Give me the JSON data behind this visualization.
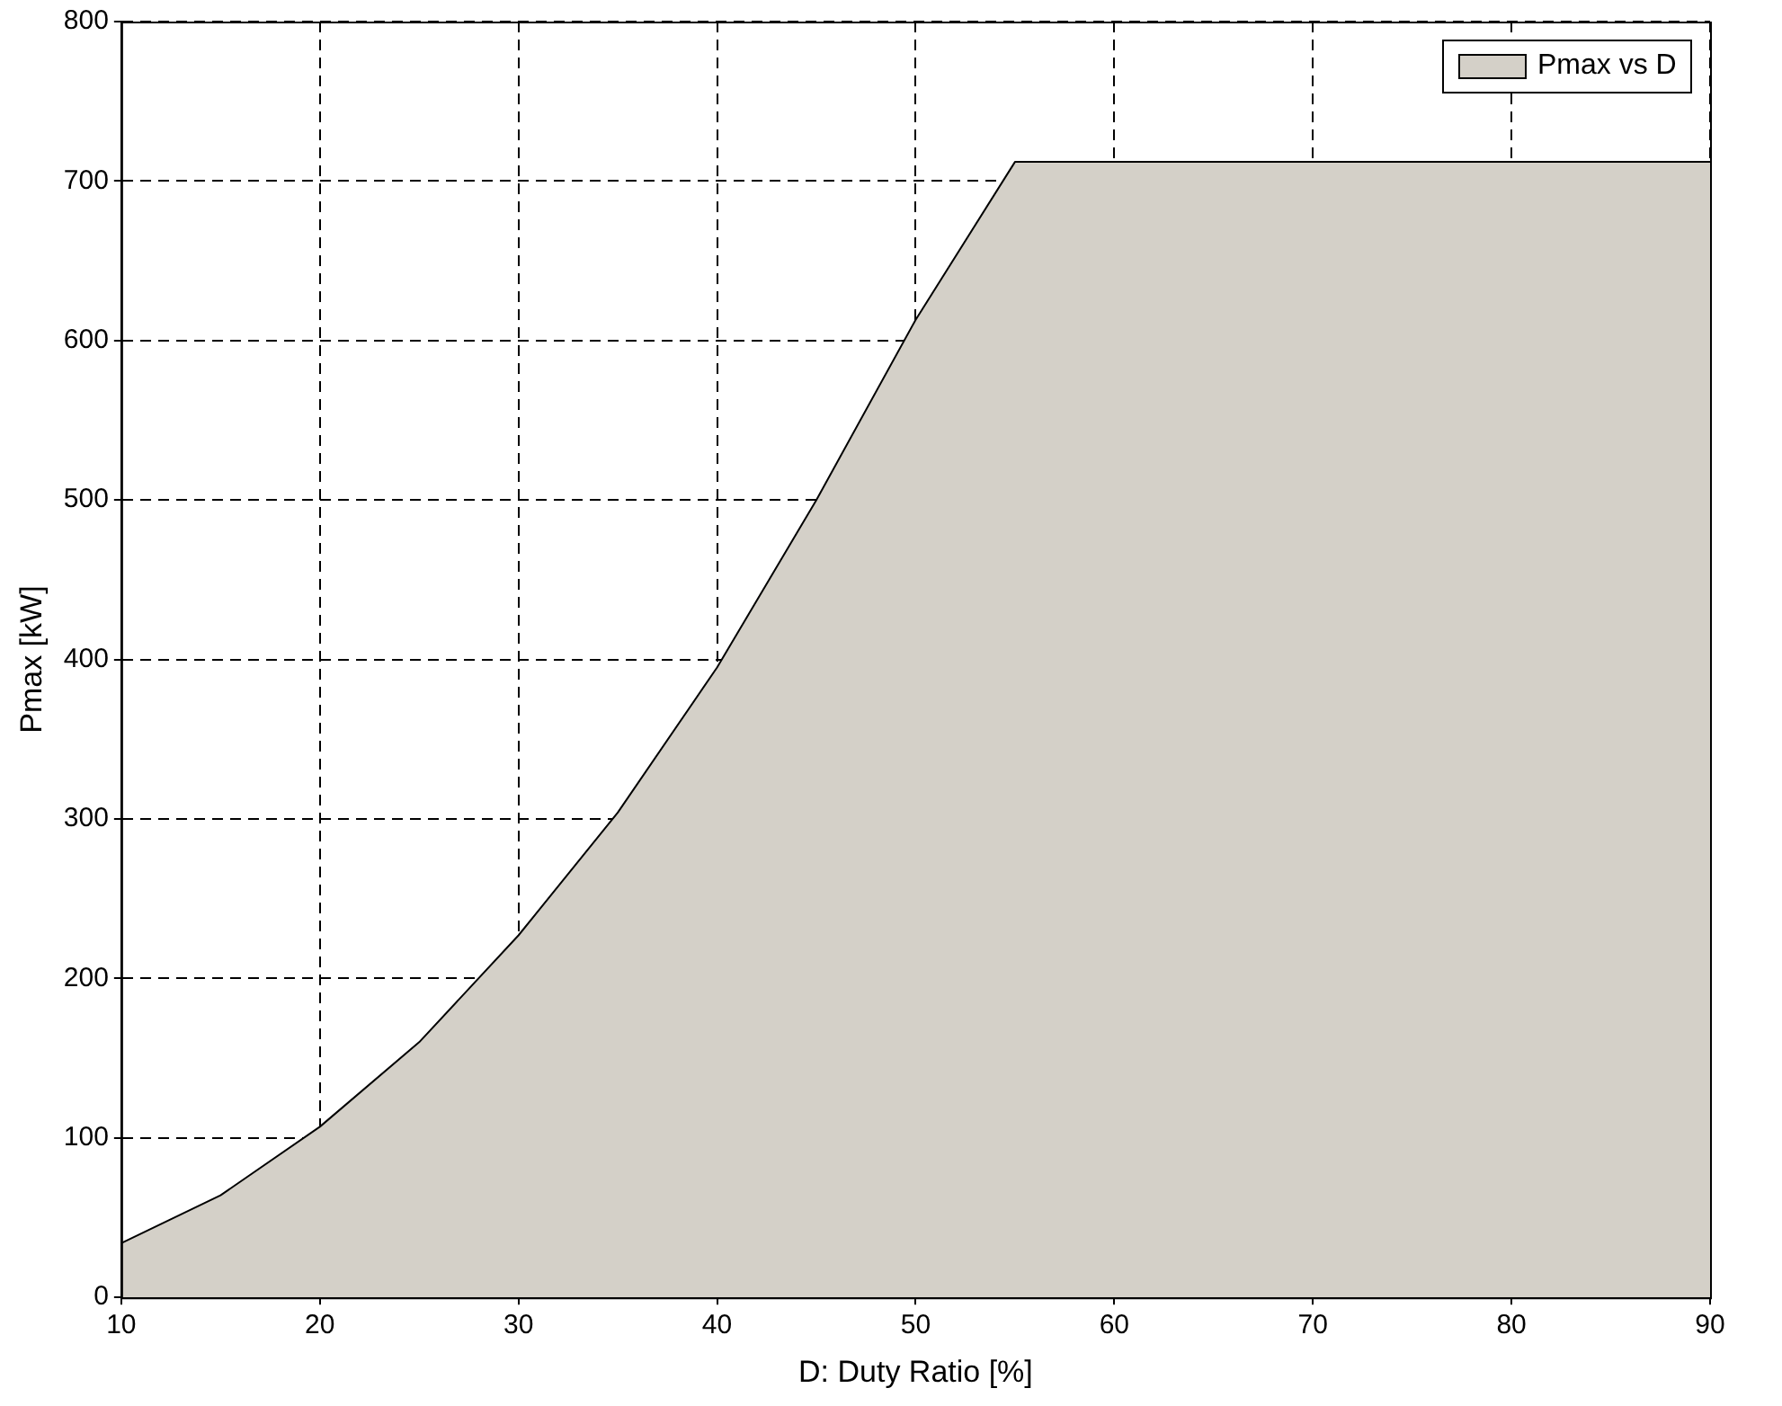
{
  "chart_data": {
    "type": "area",
    "xlabel": "D: Duty Ratio [%]",
    "ylabel": "Pmax [kW]",
    "x": [
      10,
      15,
      20,
      25,
      30,
      35,
      40,
      45,
      50,
      55,
      60,
      65,
      70,
      75,
      80,
      85,
      90
    ],
    "series": [
      {
        "name": "Pmax vs D",
        "color": "#d4d0c8",
        "values": [
          34,
          64,
          107,
          160,
          227,
          304,
          395,
          500,
          613,
          712,
          712,
          712,
          712,
          712,
          712,
          712,
          712
        ]
      }
    ],
    "xlim": [
      10,
      90
    ],
    "xticks": [
      10,
      20,
      30,
      40,
      50,
      60,
      70,
      80,
      90
    ],
    "ylim": [
      0,
      800
    ],
    "yticks": [
      0,
      100,
      200,
      300,
      400,
      500,
      600,
      700,
      800
    ],
    "grid": true,
    "legend": "top right"
  }
}
